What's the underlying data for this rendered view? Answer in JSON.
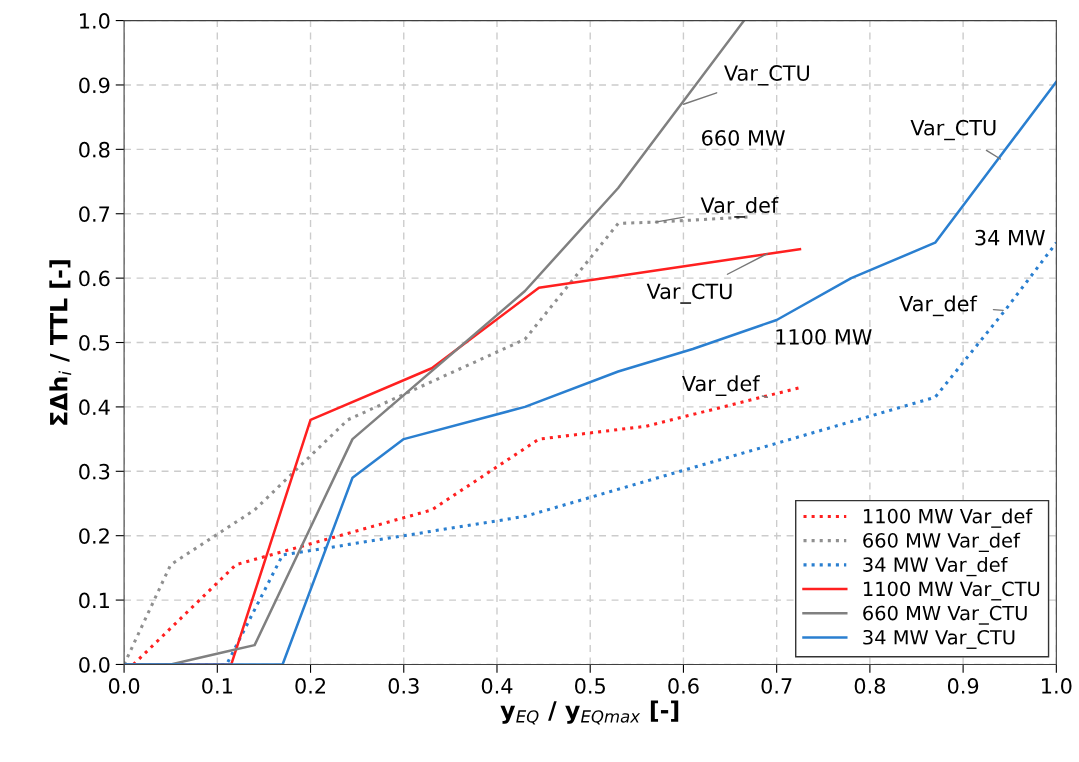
{
  "chart_data": {
    "type": "line",
    "xlabel": "y$_{EQ}$ / y$_{EQmax}$ [-]",
    "ylabel": "ΣΔh$_{i}$ / TTL [-]",
    "xlim": [
      0,
      1
    ],
    "ylim": [
      0,
      1
    ],
    "xticks": [
      {
        "value": 0,
        "label": "0.0"
      },
      0.1,
      0.2,
      0.3,
      0.4,
      0.5,
      0.6,
      0.7,
      0.8,
      0.9,
      {
        "value": 1,
        "label": "1.0"
      }
    ],
    "yticks": [
      {
        "value": 0,
        "label": "0.0"
      },
      0.1,
      0.2,
      0.3,
      0.4,
      0.5,
      0.6,
      0.7,
      0.8,
      0.9,
      {
        "value": 1,
        "label": "1.0"
      }
    ],
    "grid": true,
    "legend": "bottom right",
    "marker": "none",
    "series": [
      {
        "name": "1100 MW Var_def",
        "color": "#ff2020",
        "line_style": "dotted",
        "x": [
          0.01,
          0.12,
          0.33,
          0.445,
          0.56,
          0.725
        ],
        "values": [
          0,
          0.155,
          0.24,
          0.35,
          0.37,
          0.43
        ]
      },
      {
        "name": "660 MW Var_def",
        "color": "#909090",
        "line_style": "dotted",
        "x": [
          0,
          0.05,
          0.14,
          0.24,
          0.43,
          0.53,
          0.57,
          0.67
        ],
        "values": [
          0,
          0.155,
          0.24,
          0.38,
          0.505,
          0.685,
          0.687,
          0.695
        ]
      },
      {
        "name": "34 MW Var_def",
        "color": "#2a7fd0",
        "line_style": "dotted",
        "x": [
          0,
          0.11,
          0.17,
          0.43,
          0.87,
          0.945,
          1.0
        ],
        "values": [
          0,
          0,
          0.17,
          0.23,
          0.415,
          0.55,
          0.655
        ]
      },
      {
        "name": "1100 MW Var_CTU",
        "color": "#ff2020",
        "line_style": "solid",
        "x": [
          0,
          0.115,
          0.2,
          0.33,
          0.445,
          0.725
        ],
        "values": [
          0,
          0,
          0.38,
          0.46,
          0.585,
          0.645
        ]
      },
      {
        "name": "660 MW Var_CTU",
        "color": "#808080",
        "line_style": "solid",
        "x": [
          0,
          0.05,
          0.11,
          0.14,
          0.245,
          0.43,
          0.53,
          0.665
        ],
        "values": [
          0,
          0,
          0.02,
          0.03,
          0.35,
          0.58,
          0.74,
          1.0
        ]
      },
      {
        "name": "34 MW Var_CTU",
        "color": "#2a7fd0",
        "line_style": "solid",
        "x": [
          0,
          0.17,
          0.245,
          0.3,
          0.43,
          0.53,
          0.61,
          0.7,
          0.78,
          0.87,
          1.0
        ],
        "values": [
          0,
          0,
          0.29,
          0.35,
          0.4,
          0.455,
          0.49,
          0.535,
          0.6,
          0.655,
          0.905
        ]
      }
    ],
    "annotations": [
      {
        "text": "Var_CTU",
        "x": 0.6,
        "y": 0.87
      },
      "660 MW",
      {
        "text": "Var_def",
        "x": 0.57,
        "y": 0.687
      },
      {
        "text": "Var_CTU",
        "x": 0.69,
        "y": 0.638
      },
      "1100 MW",
      {
        "text": "Var_def",
        "x": 0.69,
        "y": 0.415
      },
      {
        "text": "Var_CTU",
        "x": 0.94,
        "y": 0.785
      },
      "34 MW",
      {
        "text": "Var_def",
        "x": 0.943,
        "y": 0.55
      }
    ]
  }
}
